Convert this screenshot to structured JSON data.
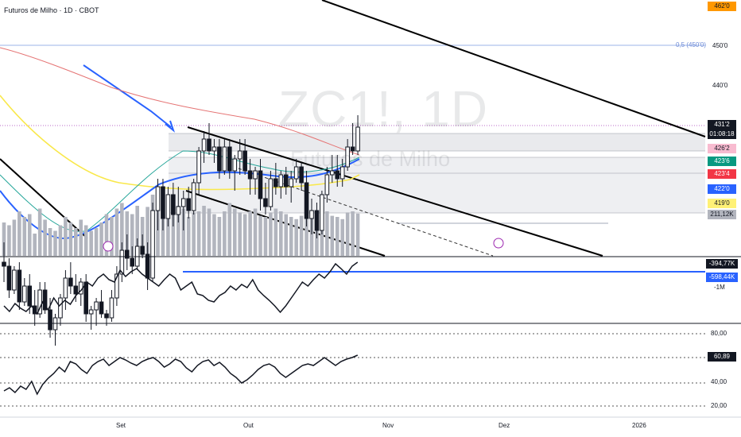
{
  "header": {
    "title": "Futuros de Milho · 1D · CBOT"
  },
  "watermark": {
    "symbol": "ZC1!, 1D",
    "name": "Futuros de Milho"
  },
  "fib": {
    "label": "0,5 (450'0)"
  },
  "price_axis": {
    "top_badge": "462'0",
    "labels": [
      "450'0",
      "440'0"
    ],
    "last_price": "431'2",
    "countdown": "01:08:18",
    "badges": [
      {
        "text": "426'2",
        "color": "#f8bbd0",
        "fg": "#131722"
      },
      {
        "text": "423'6",
        "color": "#089981",
        "fg": "#ffffff"
      },
      {
        "text": "423'4",
        "color": "#f23645",
        "fg": "#ffffff"
      },
      {
        "text": "422'0",
        "color": "#2962ff",
        "fg": "#ffffff"
      },
      {
        "text": "419'0",
        "color": "#fff176",
        "fg": "#131722"
      },
      {
        "text": "211,12K",
        "color": "#b2b5be",
        "fg": "#131722"
      }
    ]
  },
  "indicator1": {
    "value1": "-394,77K",
    "value2": "-598,44K",
    "sub": "-1M"
  },
  "indicator2": {
    "levels": [
      "80,00",
      "40,00",
      "20,00"
    ],
    "value": "60,89"
  },
  "time_axis": [
    "Set",
    "Out",
    "Nov",
    "Dez",
    "2026"
  ],
  "chart_data": {
    "type": "candlestick",
    "symbol": "ZC1!",
    "interval": "1D",
    "exchange": "CBOT",
    "last_price": 431.25,
    "ohlc": [
      [
        397,
        402,
        392,
        396
      ],
      [
        396,
        398,
        388,
        390
      ],
      [
        390,
        396,
        389,
        395
      ],
      [
        395,
        397,
        385,
        387
      ],
      [
        387,
        393,
        386,
        391
      ],
      [
        391,
        394,
        384,
        386
      ],
      [
        386,
        390,
        381,
        384
      ],
      [
        384,
        392,
        383,
        390
      ],
      [
        390,
        392,
        384,
        385
      ],
      [
        385,
        388,
        378,
        380
      ],
      [
        380,
        384,
        376,
        383
      ],
      [
        383,
        389,
        381,
        388
      ],
      [
        388,
        395,
        385,
        393
      ],
      [
        393,
        397,
        389,
        391
      ],
      [
        391,
        394,
        387,
        389
      ],
      [
        389,
        393,
        386,
        392
      ],
      [
        392,
        394,
        382,
        384
      ],
      [
        384,
        386,
        380,
        385
      ],
      [
        385,
        388,
        381,
        387
      ],
      [
        387,
        390,
        383,
        384
      ],
      [
        384,
        385,
        381,
        383
      ],
      [
        383,
        390,
        382,
        388
      ],
      [
        388,
        396,
        386,
        394
      ],
      [
        394,
        402,
        392,
        400
      ],
      [
        400,
        404,
        395,
        398
      ],
      [
        398,
        401,
        394,
        396
      ],
      [
        396,
        403,
        395,
        401
      ],
      [
        401,
        404,
        398,
        399
      ],
      [
        399,
        402,
        390,
        393
      ],
      [
        393,
        412,
        392,
        410
      ],
      [
        410,
        418,
        405,
        416
      ],
      [
        416,
        418,
        405,
        408
      ],
      [
        408,
        416,
        406,
        414
      ],
      [
        414,
        417,
        406,
        409
      ],
      [
        409,
        416,
        407,
        411
      ],
      [
        411,
        415,
        405,
        413
      ],
      [
        413,
        416,
        408,
        410
      ],
      [
        410,
        418,
        409,
        417
      ],
      [
        417,
        426,
        414,
        425
      ],
      [
        425,
        430,
        422,
        428
      ],
      [
        428,
        432,
        424,
        425
      ],
      [
        425,
        428,
        422,
        426
      ],
      [
        426,
        428,
        418,
        420
      ],
      [
        420,
        428,
        419,
        426
      ],
      [
        426,
        428,
        418,
        420
      ],
      [
        420,
        424,
        415,
        423
      ],
      [
        423,
        428,
        419,
        425
      ],
      [
        425,
        428,
        419,
        420
      ],
      [
        420,
        423,
        414,
        418
      ],
      [
        418,
        421,
        414,
        420
      ],
      [
        420,
        423,
        410,
        413
      ],
      [
        413,
        417,
        409,
        411
      ],
      [
        411,
        420,
        410,
        418
      ],
      [
        418,
        422,
        414,
        416
      ],
      [
        416,
        420,
        413,
        419
      ],
      [
        419,
        421,
        414,
        416
      ],
      [
        416,
        420,
        412,
        418
      ],
      [
        418,
        423,
        417,
        421
      ],
      [
        421,
        422,
        415,
        417
      ],
      [
        417,
        420,
        406,
        408
      ],
      [
        408,
        413,
        404,
        410
      ],
      [
        410,
        412,
        403,
        405
      ],
      [
        405,
        415,
        404,
        414
      ],
      [
        414,
        421,
        412,
        419
      ],
      [
        419,
        424,
        417,
        420
      ],
      [
        420,
        424,
        416,
        418
      ],
      [
        418,
        423,
        416,
        421
      ],
      [
        421,
        428,
        420,
        426
      ],
      [
        426,
        432,
        424,
        425
      ],
      [
        425,
        434,
        424,
        431
      ]
    ],
    "volume": [
      60,
      55,
      65,
      80,
      70,
      75,
      40,
      85,
      65,
      50,
      45,
      55,
      70,
      60,
      50,
      65,
      55,
      45,
      50,
      60,
      75,
      70,
      85,
      95,
      80,
      75,
      90,
      70,
      88,
      110,
      85,
      78,
      70,
      95,
      90,
      85,
      70,
      78,
      80,
      90,
      85,
      75,
      70,
      80,
      95,
      85,
      78,
      75,
      80,
      85,
      72,
      70,
      78,
      85,
      80,
      75,
      70,
      66,
      72,
      80,
      75,
      70,
      78,
      80,
      72,
      70,
      66,
      78,
      80,
      76
    ],
    "indicator1_range": [
      "-1M",
      "-394,77K"
    ],
    "indicator2_levels": [
      80,
      40,
      20
    ],
    "indicator2_last": 60.89
  }
}
